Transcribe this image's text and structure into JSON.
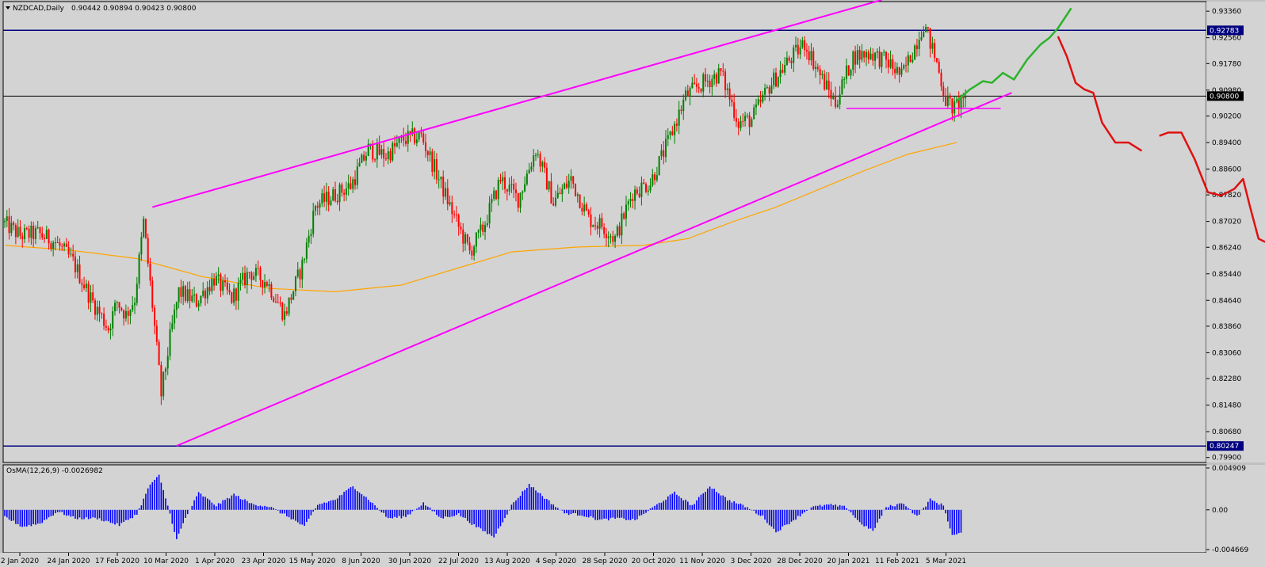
{
  "header": {
    "symbol": "NZDCAD,Daily",
    "ohlc": "0.90442 0.90894 0.90423 0.90800"
  },
  "osma_label": "OsMA(12,26,9) -0.0026982",
  "colors": {
    "background": "#d3d3d3",
    "bull": "#008000",
    "bear": "#ff0000",
    "channel": "#ff00ff",
    "ma": "#ffa500",
    "hline": "#000080",
    "forecast_up": "#2bb32b",
    "forecast_down": "#e01010",
    "osma": "#0000ff"
  },
  "chart_data": [
    {
      "type": "candlestick",
      "title": "NZDCAD,Daily",
      "ylim": [
        0.7975,
        0.9365
      ],
      "y_ticks": [
        "0.93360",
        "0.92560",
        "0.91780",
        "0.90980",
        "0.90200",
        "0.89400",
        "0.88600",
        "0.87820",
        "0.87020",
        "0.86240",
        "0.85440",
        "0.84640",
        "0.83860",
        "0.83060",
        "0.82280",
        "0.81480",
        "0.80680",
        "0.79900"
      ],
      "x_labels": [
        "2 Jan 2020",
        "24 Jan 2020",
        "17 Feb 2020",
        "10 Mar 2020",
        "1 Apr 2020",
        "23 Apr 2020",
        "15 May 2020",
        "8 Jun 2020",
        "30 Jun 2020",
        "22 Jul 2020",
        "13 Aug 2020",
        "4 Sep 2020",
        "28 Sep 2020",
        "20 Oct 2020",
        "11 Nov 2020",
        "3 Dec 2020",
        "28 Dec 2020",
        "20 Jan 2021",
        "11 Feb 2021",
        "5 Mar 2021"
      ],
      "price_anchors": [
        [
          0,
          0.87
        ],
        [
          8,
          0.866
        ],
        [
          16,
          0.8665
        ],
        [
          24,
          0.864
        ],
        [
          32,
          0.858
        ],
        [
          40,
          0.847
        ],
        [
          48,
          0.838
        ],
        [
          52,
          0.846
        ],
        [
          56,
          0.842
        ],
        [
          60,
          0.847
        ],
        [
          64,
          0.87
        ],
        [
          68,
          0.845
        ],
        [
          72,
          0.818
        ],
        [
          76,
          0.835
        ],
        [
          80,
          0.849
        ],
        [
          88,
          0.846
        ],
        [
          96,
          0.853
        ],
        [
          104,
          0.847
        ],
        [
          112,
          0.855
        ],
        [
          120,
          0.852
        ],
        [
          128,
          0.842
        ],
        [
          136,
          0.857
        ],
        [
          142,
          0.875
        ],
        [
          150,
          0.878
        ],
        [
          158,
          0.881
        ],
        [
          166,
          0.892
        ],
        [
          174,
          0.89
        ],
        [
          182,
          0.895
        ],
        [
          190,
          0.896
        ],
        [
          198,
          0.883
        ],
        [
          206,
          0.87
        ],
        [
          212,
          0.861
        ],
        [
          218,
          0.868
        ],
        [
          226,
          0.883
        ],
        [
          234,
          0.877
        ],
        [
          242,
          0.892
        ],
        [
          250,
          0.876
        ],
        [
          258,
          0.883
        ],
        [
          266,
          0.871
        ],
        [
          272,
          0.869
        ],
        [
          278,
          0.865
        ],
        [
          286,
          0.879
        ],
        [
          294,
          0.882
        ],
        [
          302,
          0.894
        ],
        [
          310,
          0.908
        ],
        [
          318,
          0.912
        ],
        [
          326,
          0.915
        ],
        [
          334,
          0.9
        ],
        [
          340,
          0.901
        ],
        [
          348,
          0.911
        ],
        [
          356,
          0.918
        ],
        [
          364,
          0.924
        ],
        [
          372,
          0.913
        ],
        [
          378,
          0.906
        ],
        [
          386,
          0.92
        ],
        [
          394,
          0.921
        ],
        [
          402,
          0.918
        ],
        [
          408,
          0.914
        ],
        [
          414,
          0.923
        ],
        [
          418,
          0.93
        ],
        [
          424,
          0.918
        ],
        [
          428,
          0.907
        ],
        [
          432,
          0.904
        ],
        [
          436,
          0.908
        ]
      ],
      "last_price": "0.90800",
      "horizontal_levels": [
        {
          "label": "0.92783",
          "value": 0.92783
        },
        {
          "label": "0.80247",
          "value": 0.80247
        }
      ],
      "channel_lines": [
        {
          "from": {
            "date_index": 67,
            "price": 0.8745
          },
          "to": {
            "date_index": 398,
            "price": 0.937
          }
        },
        {
          "from": {
            "date_index": 78,
            "price": 0.8025
          },
          "to": {
            "date_index": 457,
            "price": 0.909
          }
        }
      ],
      "support_segment": {
        "from_index": 382,
        "to_index": 452,
        "price": 0.9043
      },
      "moving_average": [
        [
          0,
          0.863
        ],
        [
          30,
          0.8615
        ],
        [
          60,
          0.859
        ],
        [
          90,
          0.8535
        ],
        [
          120,
          0.85
        ],
        [
          150,
          0.849
        ],
        [
          180,
          0.851
        ],
        [
          210,
          0.857
        ],
        [
          230,
          0.861
        ],
        [
          260,
          0.8625
        ],
        [
          290,
          0.863
        ],
        [
          310,
          0.865
        ],
        [
          330,
          0.87
        ],
        [
          350,
          0.8745
        ],
        [
          370,
          0.88
        ],
        [
          390,
          0.8855
        ],
        [
          410,
          0.8905
        ],
        [
          432,
          0.894
        ]
      ],
      "forecast_up": [
        [
          432,
          0.9065
        ],
        [
          438,
          0.91
        ],
        [
          444,
          0.9125
        ],
        [
          448,
          0.912
        ],
        [
          453,
          0.915
        ],
        [
          458,
          0.913
        ],
        [
          464,
          0.919
        ],
        [
          470,
          0.9235
        ],
        [
          474,
          0.9255
        ],
        [
          478,
          0.9285
        ],
        [
          484,
          0.9345
        ]
      ],
      "forecast_down": [
        [
          478,
          0.926
        ],
        [
          482,
          0.92
        ],
        [
          486,
          0.912
        ],
        [
          490,
          0.91
        ],
        [
          494,
          0.909
        ],
        [
          498,
          0.9
        ],
        [
          504,
          0.894
        ],
        [
          510,
          0.894
        ],
        [
          516,
          0.8915
        ],
        [
          524,
          0.896
        ],
        [
          528,
          0.897
        ],
        [
          534,
          0.897
        ],
        [
          540,
          0.889
        ],
        [
          546,
          0.879
        ],
        [
          552,
          0.878
        ],
        [
          558,
          0.88
        ],
        [
          562,
          0.883
        ],
        [
          565,
          0.875
        ],
        [
          569,
          0.865
        ],
        [
          572,
          0.864
        ]
      ]
    },
    {
      "type": "bar",
      "title": "OsMA(12,26,9) -0.0026982",
      "ylim": [
        -0.004669,
        0.004909
      ],
      "y_ticks": [
        "0.004909",
        "0.00",
        "-0.004669"
      ],
      "value_anchors": [
        [
          0,
          -0.0008
        ],
        [
          8,
          -0.002
        ],
        [
          16,
          -0.0016
        ],
        [
          24,
          -0.0002
        ],
        [
          32,
          -0.001
        ],
        [
          42,
          -0.001
        ],
        [
          52,
          -0.0018
        ],
        [
          60,
          -0.0005
        ],
        [
          66,
          0.003
        ],
        [
          70,
          0.004
        ],
        [
          74,
          0.0005
        ],
        [
          78,
          -0.0035
        ],
        [
          82,
          -0.001
        ],
        [
          88,
          0.002
        ],
        [
          96,
          0.0005
        ],
        [
          104,
          0.0018
        ],
        [
          112,
          0.0007
        ],
        [
          120,
          0.0004
        ],
        [
          130,
          -0.001
        ],
        [
          136,
          -0.002
        ],
        [
          142,
          0.0006
        ],
        [
          150,
          0.0012
        ],
        [
          158,
          0.0028
        ],
        [
          166,
          0.001
        ],
        [
          174,
          -0.001
        ],
        [
          182,
          -0.0008
        ],
        [
          190,
          0.0008
        ],
        [
          198,
          -0.001
        ],
        [
          206,
          -0.0005
        ],
        [
          214,
          -0.002
        ],
        [
          222,
          -0.0032
        ],
        [
          230,
          0.0005
        ],
        [
          238,
          0.003
        ],
        [
          246,
          0.0012
        ],
        [
          254,
          -0.0004
        ],
        [
          262,
          -0.0006
        ],
        [
          270,
          -0.0012
        ],
        [
          278,
          -0.001
        ],
        [
          286,
          -0.0012
        ],
        [
          296,
          0.0006
        ],
        [
          304,
          0.002
        ],
        [
          312,
          0.0005
        ],
        [
          320,
          0.0028
        ],
        [
          328,
          0.0012
        ],
        [
          336,
          0.0004
        ],
        [
          344,
          -0.0008
        ],
        [
          350,
          -0.0026
        ],
        [
          358,
          -0.0012
        ],
        [
          366,
          0.0003
        ],
        [
          374,
          0.0006
        ],
        [
          382,
          0.0003
        ],
        [
          388,
          -0.0015
        ],
        [
          394,
          -0.0025
        ],
        [
          400,
          0.0003
        ],
        [
          408,
          0.0008
        ],
        [
          414,
          -0.0008
        ],
        [
          420,
          0.0012
        ],
        [
          426,
          0.0005
        ],
        [
          430,
          -0.003
        ],
        [
          434,
          -0.0028
        ]
      ]
    }
  ]
}
